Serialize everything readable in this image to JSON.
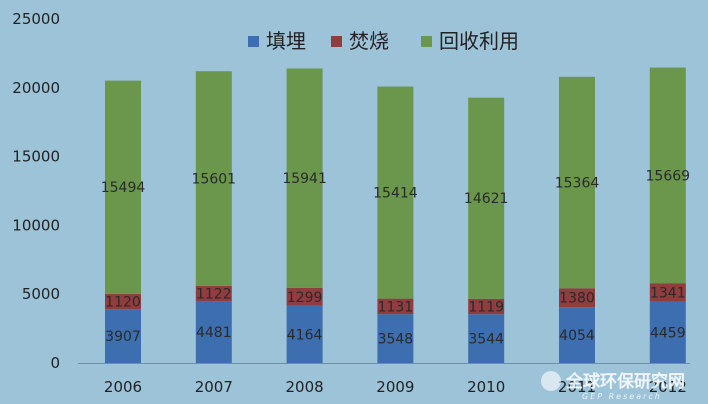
{
  "chart_data": {
    "type": "bar",
    "stacked": true,
    "categories": [
      "2006",
      "2007",
      "2008",
      "2009",
      "2010",
      "2011",
      "2012"
    ],
    "series": [
      {
        "name": "填埋",
        "color": "#3d6fb0",
        "values": [
          3907,
          4481,
          4164,
          3548,
          3544,
          4054,
          4459
        ]
      },
      {
        "name": "焚烧",
        "color": "#8f3d3f",
        "values": [
          1120,
          1122,
          1299,
          1131,
          1119,
          1380,
          1341
        ]
      },
      {
        "name": "回收利用",
        "color": "#6a974c",
        "values": [
          15494,
          15601,
          15941,
          15414,
          14621,
          15364,
          15669
        ]
      }
    ],
    "ylim": [
      0,
      25000
    ],
    "yticks": [
      0,
      5000,
      10000,
      15000,
      20000,
      25000
    ],
    "legend_position": "top",
    "grid": false,
    "title": "",
    "xlabel": "",
    "ylabel": ""
  },
  "watermark": {
    "text": "全球环保研究网",
    "subtext": "GEP Research"
  }
}
